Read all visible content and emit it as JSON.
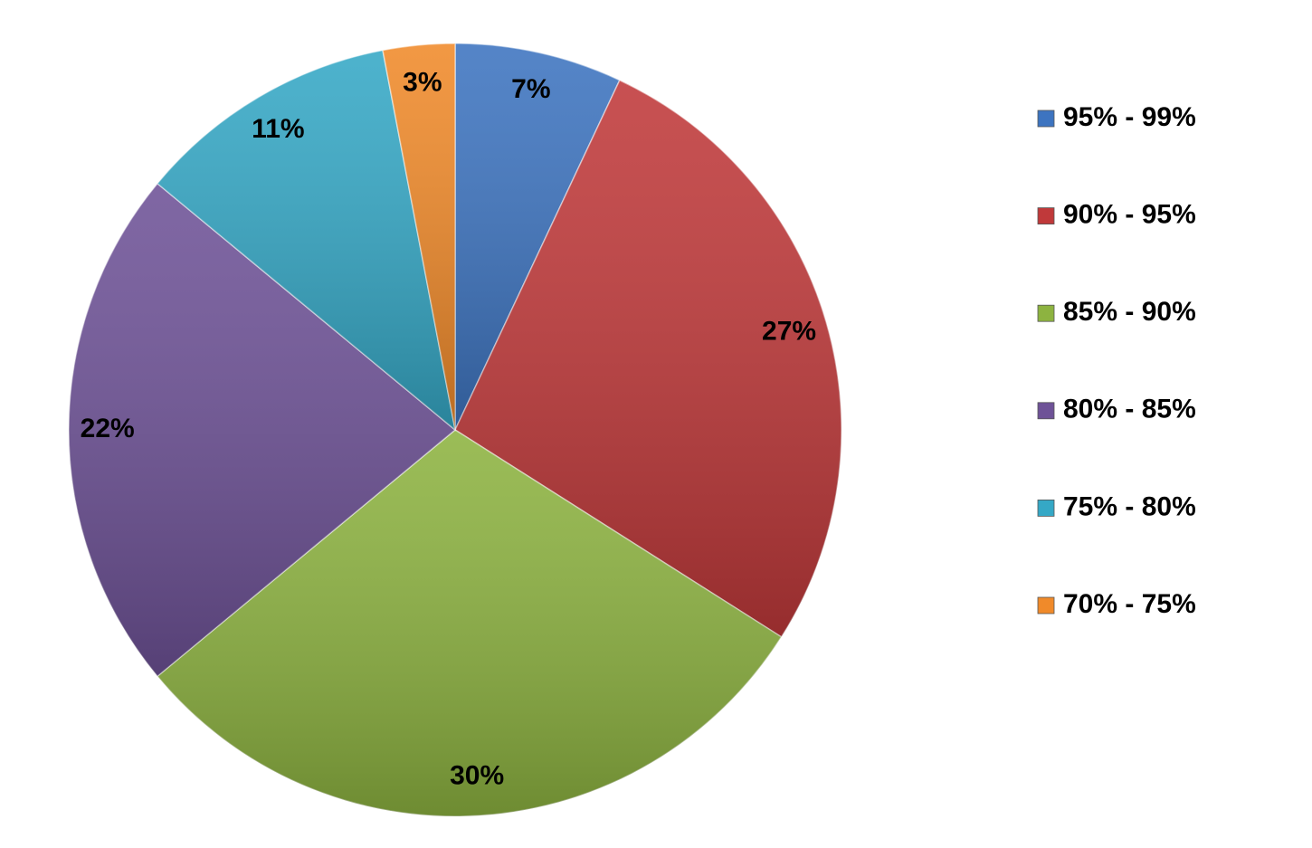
{
  "chart_data": {
    "type": "pie",
    "categories": [
      "95% - 99%",
      "90% - 95%",
      "85% - 90%",
      "80% - 85%",
      "75% - 80%",
      "70% - 75%"
    ],
    "values": [
      7,
      27,
      30,
      22,
      11,
      3
    ],
    "value_labels": [
      "7%",
      "27%",
      "30%",
      "22%",
      "11%",
      "3%"
    ],
    "colors": [
      "#3d74c0",
      "#c0393a",
      "#8db340",
      "#6e5297",
      "#35a8c6",
      "#f08a2a"
    ],
    "legend": "right"
  }
}
